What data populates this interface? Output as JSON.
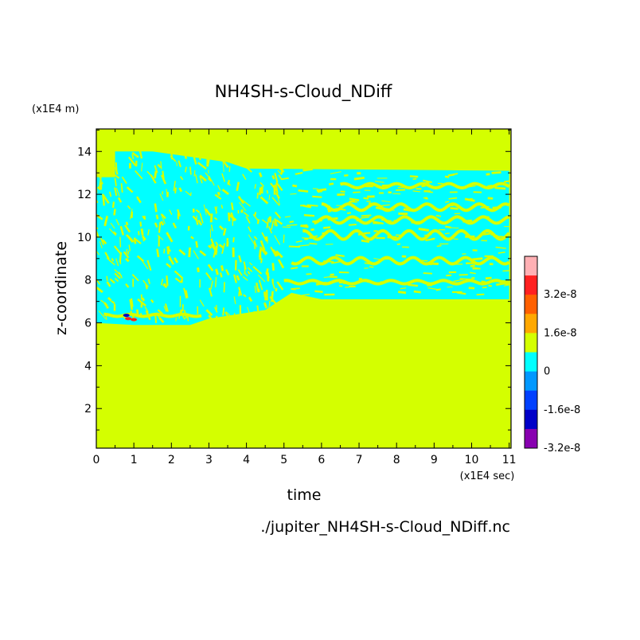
{
  "chart_data": {
    "type": "heatmap",
    "title": "NH4SH-s-Cloud_NDiff",
    "xlabel": "time",
    "ylabel": "z-coordinate",
    "x_unit": "(x1E4 sec)",
    "y_unit": "(x1E4 m)",
    "source_file": "./jupiter_NH4SH-s-Cloud_NDiff.nc",
    "xlim": [
      0,
      11.05
    ],
    "ylim": [
      0.15,
      15.05
    ],
    "x_ticks": [
      "0",
      "1",
      "2",
      "3",
      "4",
      "5",
      "6",
      "7",
      "8",
      "9",
      "10",
      "11"
    ],
    "y_ticks": [
      "2",
      "4",
      "6",
      "8",
      "10",
      "12",
      "14"
    ],
    "colorbar": {
      "levels": [
        {
          "label": "",
          "color": "#ffb0b4"
        },
        {
          "label": "3.2e-8",
          "color": "#ff2020"
        },
        {
          "label": "",
          "color": "#ff6000"
        },
        {
          "label": "1.6e-8",
          "color": "#ffa800"
        },
        {
          "label": "",
          "color": "#d4ff00"
        },
        {
          "label": "0",
          "color": "#00ffff"
        },
        {
          "label": "",
          "color": "#0098ff"
        },
        {
          "label": "-1.6e-8",
          "color": "#0040ff"
        },
        {
          "label": "",
          "color": "#0000c8"
        },
        {
          "label": "-3.2e-8",
          "color": "#8800b0"
        }
      ]
    },
    "background_color": "#d4ff00",
    "negative_color": "#00ffff",
    "regions": [
      {
        "name": "upper-negative-band",
        "polygon": [
          [
            0,
            12.8
          ],
          [
            0.5,
            12.8
          ],
          [
            0.5,
            14.0
          ],
          [
            1.5,
            14.0
          ],
          [
            3.5,
            13.5
          ],
          [
            4.0,
            13.2
          ],
          [
            11.0,
            13.1
          ],
          [
            11.0,
            7.1
          ],
          [
            6.0,
            7.1
          ],
          [
            5.2,
            7.4
          ],
          [
            4.5,
            6.6
          ],
          [
            3.0,
            6.2
          ],
          [
            2.5,
            5.9
          ],
          [
            1.0,
            5.9
          ],
          [
            0,
            6.0
          ]
        ]
      }
    ],
    "stripes": [
      {
        "x": [
          5.0,
          11.0
        ],
        "y": [
          7.9,
          7.9
        ],
        "amp": 0.08
      },
      {
        "x": [
          5.2,
          11.0
        ],
        "y": [
          8.9,
          8.9
        ],
        "amp": 0.15
      },
      {
        "x": [
          5.5,
          11.0
        ],
        "y": [
          10.1,
          10.1
        ],
        "amp": 0.2
      },
      {
        "x": [
          5.8,
          11.0
        ],
        "y": [
          10.8,
          10.8
        ],
        "amp": 0.15
      },
      {
        "x": [
          6.0,
          11.0
        ],
        "y": [
          11.4,
          11.4
        ],
        "amp": 0.15
      },
      {
        "x": [
          6.5,
          11.0
        ],
        "y": [
          12.4,
          12.4
        ],
        "amp": 0.1
      },
      {
        "x": [
          0.2,
          2.8
        ],
        "y": [
          6.35,
          6.35
        ],
        "amp": 0.05
      }
    ],
    "anomalies": [
      {
        "x": 0.85,
        "y": 6.2,
        "value": "positive"
      },
      {
        "x": 0.8,
        "y": 6.35,
        "value": "negative"
      },
      {
        "x": 1.0,
        "y": 6.15,
        "value": "positive"
      }
    ]
  }
}
